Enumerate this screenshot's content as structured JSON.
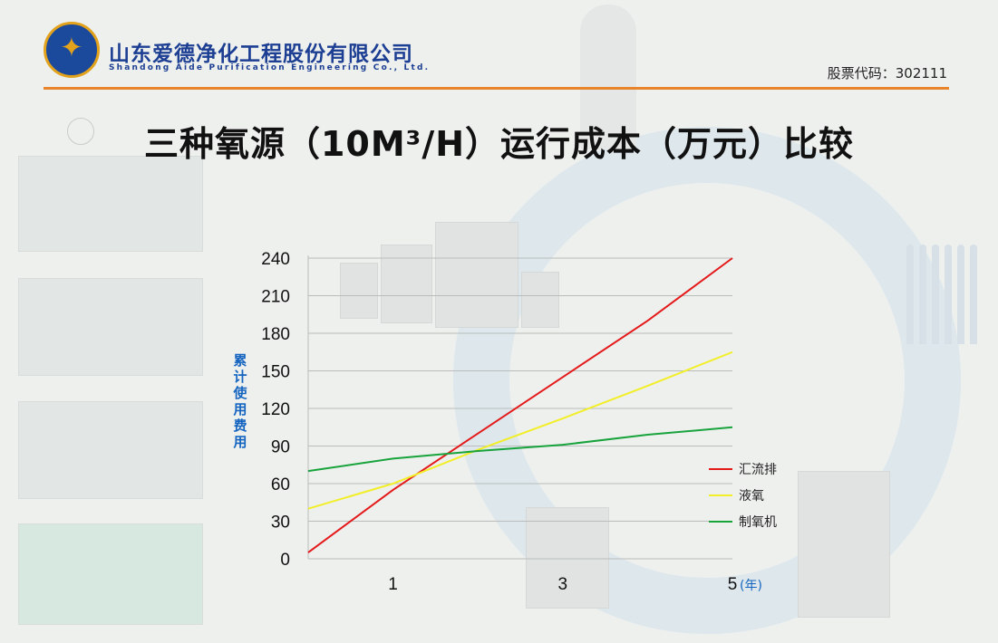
{
  "header": {
    "company_cn": "山东爱德净化工程股份有限公司",
    "company_en": "Shandong Aide Purification Engineering Co., Ltd.",
    "stock_code": "股票代码：302111"
  },
  "colors": {
    "accent": "#e8842a",
    "brand": "#1d3f93",
    "label_blue": "#1565c0"
  },
  "chart_data": {
    "type": "line",
    "title": "三种氧源（10M³/H）运行成本（万元）比较",
    "ylabel": "累计使用费用",
    "xlabel": "(年)",
    "x": [
      0,
      1,
      2,
      3,
      4,
      5
    ],
    "x_ticks": [
      "1",
      "3",
      "5"
    ],
    "x_tick_values": [
      1,
      3,
      5
    ],
    "xlim": [
      0,
      5
    ],
    "ylim": [
      0,
      240
    ],
    "y_ticks": [
      "0",
      "30",
      "60",
      "90",
      "120",
      "150",
      "180",
      "210",
      "240"
    ],
    "y_tick_values": [
      0,
      30,
      60,
      90,
      120,
      150,
      180,
      210,
      240
    ],
    "grid": true,
    "legend_position": "right",
    "series": [
      {
        "name": "汇流排",
        "color": "#e41a1a",
        "values": [
          5,
          55,
          100,
          145,
          190,
          240
        ]
      },
      {
        "name": "液氧",
        "color": "#f2ee27",
        "values": [
          40,
          60,
          87,
          112,
          138,
          165
        ]
      },
      {
        "name": "制氧机",
        "color": "#18a33c",
        "values": [
          70,
          80,
          86,
          91,
          99,
          105
        ]
      }
    ]
  }
}
